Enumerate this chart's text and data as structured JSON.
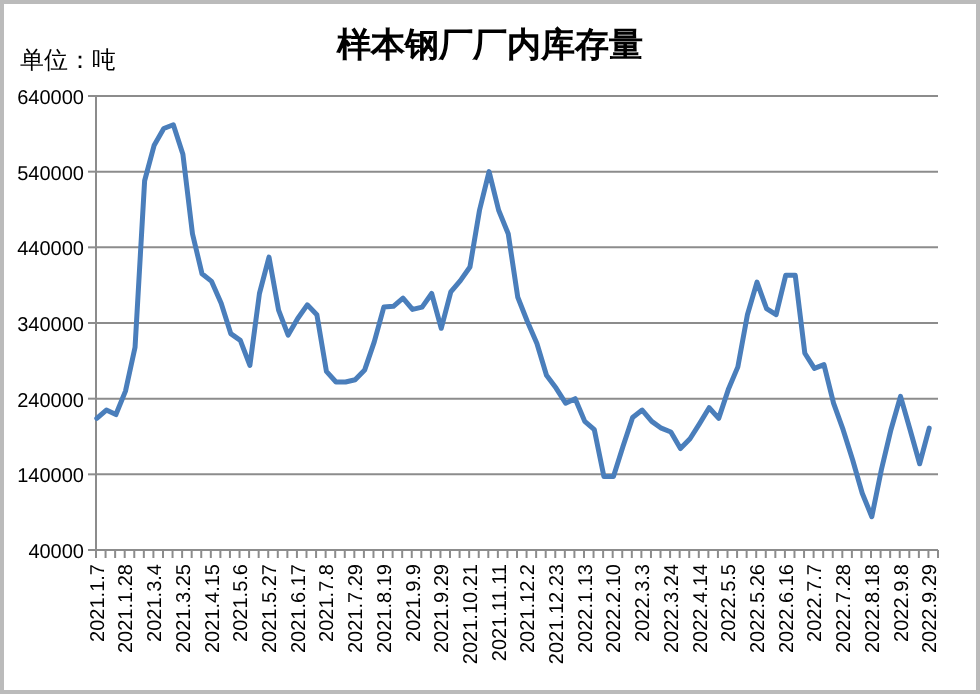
{
  "chart_data": {
    "type": "line",
    "title": "样本钢厂厂内库存量",
    "annotations": [
      "单位：吨"
    ],
    "categories": [
      "2021.1.7",
      null,
      null,
      "2021.1.28",
      null,
      null,
      "2021.3.4",
      null,
      null,
      "2021.3.25",
      null,
      null,
      "2021.4.15",
      null,
      null,
      "2021.5.6",
      null,
      null,
      "2021.5.27",
      null,
      null,
      "2021.6.17",
      null,
      null,
      "2021.7.8",
      null,
      null,
      "2021.7.29",
      null,
      null,
      "2021.8.19",
      null,
      null,
      "2021.9.9",
      null,
      null,
      "2021.9.29",
      null,
      null,
      "2021.10.21",
      null,
      null,
      "2021.11.11",
      null,
      null,
      "2021.12.2",
      null,
      null,
      "2021.12.23",
      null,
      null,
      "2022.1.13",
      null,
      null,
      "2022.2.10",
      null,
      null,
      "2022.3.3",
      null,
      null,
      "2022.3.24",
      null,
      null,
      "2022.4.14",
      null,
      null,
      "2022.5.5",
      null,
      null,
      "2022.5.26",
      null,
      null,
      "2022.6.16",
      null,
      null,
      "2022.7.7",
      null,
      null,
      "2022.7.28",
      null,
      null,
      "2022.8.18",
      null,
      null,
      "2022.9.8",
      null,
      null,
      "2022.9.29"
    ],
    "series": [
      {
        "color": "#4a7ebb",
        "values": [
          214000,
          225000,
          219000,
          250000,
          308000,
          528000,
          575000,
          597000,
          602000,
          563000,
          458000,
          405000,
          395000,
          366000,
          326000,
          317000,
          284000,
          379000,
          427000,
          357000,
          324000,
          346000,
          364000,
          351000,
          276000,
          262000,
          262000,
          265000,
          278000,
          315000,
          361000,
          362000,
          373000,
          358000,
          361000,
          379000,
          333000,
          381000,
          396000,
          414000,
          489000,
          540000,
          489000,
          458000,
          374000,
          342000,
          313000,
          271000,
          254000,
          234000,
          240000,
          210000,
          199000,
          137000,
          137000,
          177000,
          215000,
          225000,
          210000,
          201000,
          196000,
          174000,
          187000,
          207000,
          228000,
          214000,
          252000,
          282000,
          351000,
          394000,
          359000,
          351000,
          403000,
          403000,
          300000,
          280000,
          285000,
          234000,
          199000,
          159000,
          115000,
          84000,
          146000,
          199000,
          243000,
          199000,
          154000,
          201000
        ]
      }
    ],
    "ylim": [
      40000,
      640000
    ],
    "yticks": [
      40000,
      140000,
      240000,
      340000,
      440000,
      540000,
      640000
    ],
    "grid": "y",
    "marker": "none",
    "line_style": "solid"
  }
}
